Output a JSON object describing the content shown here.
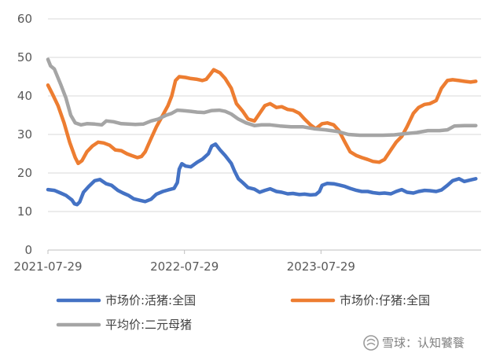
{
  "chart_data": {
    "type": "line",
    "title": "",
    "xlabel": "",
    "ylabel": "",
    "ylim": [
      0,
      60
    ],
    "yticks": [
      0,
      10,
      20,
      30,
      40,
      50,
      60
    ],
    "xlim": [
      "2021-07-29",
      "2024-09-29"
    ],
    "xtick_labels": [
      "2021-07-29",
      "2022-07-29",
      "2023-07-29"
    ],
    "grid": "horizontal",
    "legend_position": "bottom",
    "series": [
      {
        "name": "市场价:活猪:全国",
        "color": "#4472C4",
        "points": [
          [
            "2021-07-29",
            15.7
          ],
          [
            "2021-08-15",
            15.5
          ],
          [
            "2021-09-01",
            14.8
          ],
          [
            "2021-09-15",
            14.2
          ],
          [
            "2021-10-01",
            13.0
          ],
          [
            "2021-10-08",
            12.0
          ],
          [
            "2021-10-15",
            11.8
          ],
          [
            "2021-10-22",
            12.5
          ],
          [
            "2021-11-01",
            15.0
          ],
          [
            "2021-11-15",
            16.5
          ],
          [
            "2021-12-01",
            18.0
          ],
          [
            "2021-12-15",
            18.3
          ],
          [
            "2022-01-01",
            17.2
          ],
          [
            "2022-01-15",
            16.8
          ],
          [
            "2022-02-01",
            15.5
          ],
          [
            "2022-02-15",
            14.8
          ],
          [
            "2022-03-01",
            14.2
          ],
          [
            "2022-03-15",
            13.3
          ],
          [
            "2022-04-01",
            12.9
          ],
          [
            "2022-04-15",
            12.6
          ],
          [
            "2022-05-01",
            13.2
          ],
          [
            "2022-05-15",
            14.5
          ],
          [
            "2022-06-01",
            15.2
          ],
          [
            "2022-06-15",
            15.6
          ],
          [
            "2022-07-01",
            16.0
          ],
          [
            "2022-07-10",
            17.5
          ],
          [
            "2022-07-15",
            21.0
          ],
          [
            "2022-07-22",
            22.4
          ],
          [
            "2022-08-01",
            21.8
          ],
          [
            "2022-08-15",
            21.6
          ],
          [
            "2022-09-01",
            22.8
          ],
          [
            "2022-09-15",
            23.6
          ],
          [
            "2022-10-01",
            25.0
          ],
          [
            "2022-10-10",
            27.0
          ],
          [
            "2022-10-20",
            27.5
          ],
          [
            "2022-11-01",
            26.0
          ],
          [
            "2022-11-15",
            24.5
          ],
          [
            "2022-12-01",
            22.5
          ],
          [
            "2022-12-10",
            20.5
          ],
          [
            "2022-12-20",
            18.5
          ],
          [
            "2023-01-01",
            17.5
          ],
          [
            "2023-01-15",
            16.2
          ],
          [
            "2023-02-01",
            15.8
          ],
          [
            "2023-02-15",
            15.0
          ],
          [
            "2023-03-01",
            15.5
          ],
          [
            "2023-03-15",
            15.9
          ],
          [
            "2023-04-01",
            15.2
          ],
          [
            "2023-04-15",
            15.0
          ],
          [
            "2023-05-01",
            14.6
          ],
          [
            "2023-05-15",
            14.7
          ],
          [
            "2023-06-01",
            14.4
          ],
          [
            "2023-06-15",
            14.5
          ],
          [
            "2023-07-01",
            14.3
          ],
          [
            "2023-07-15",
            14.4
          ],
          [
            "2023-07-25",
            15.2
          ],
          [
            "2023-08-01",
            16.8
          ],
          [
            "2023-08-15",
            17.3
          ],
          [
            "2023-09-01",
            17.2
          ],
          [
            "2023-09-15",
            16.9
          ],
          [
            "2023-10-01",
            16.5
          ],
          [
            "2023-10-15",
            16.0
          ],
          [
            "2023-11-01",
            15.5
          ],
          [
            "2023-11-15",
            15.2
          ],
          [
            "2023-12-01",
            15.2
          ],
          [
            "2023-12-15",
            14.9
          ],
          [
            "2024-01-01",
            14.7
          ],
          [
            "2024-01-15",
            14.8
          ],
          [
            "2024-02-01",
            14.6
          ],
          [
            "2024-02-15",
            15.2
          ],
          [
            "2024-03-01",
            15.7
          ],
          [
            "2024-03-15",
            15.0
          ],
          [
            "2024-04-01",
            14.8
          ],
          [
            "2024-04-15",
            15.2
          ],
          [
            "2024-05-01",
            15.5
          ],
          [
            "2024-05-15",
            15.4
          ],
          [
            "2024-06-01",
            15.2
          ],
          [
            "2024-06-15",
            15.6
          ],
          [
            "2024-07-01",
            16.8
          ],
          [
            "2024-07-15",
            18.0
          ],
          [
            "2024-08-01",
            18.5
          ],
          [
            "2024-08-15",
            17.8
          ],
          [
            "2024-09-01",
            18.2
          ],
          [
            "2024-09-15",
            18.5
          ]
        ]
      },
      {
        "name": "市场价:仔猪:全国",
        "color": "#ED7D31",
        "points": [
          [
            "2021-07-29",
            42.8
          ],
          [
            "2021-08-10",
            40.5
          ],
          [
            "2021-08-25",
            37.5
          ],
          [
            "2021-09-10",
            33.0
          ],
          [
            "2021-09-25",
            28.0
          ],
          [
            "2021-10-10",
            24.0
          ],
          [
            "2021-10-18",
            22.5
          ],
          [
            "2021-10-28",
            23.2
          ],
          [
            "2021-11-10",
            25.5
          ],
          [
            "2021-11-25",
            27.0
          ],
          [
            "2021-12-10",
            28.0
          ],
          [
            "2021-12-25",
            27.8
          ],
          [
            "2022-01-10",
            27.2
          ],
          [
            "2022-01-25",
            26.0
          ],
          [
            "2022-02-10",
            25.8
          ],
          [
            "2022-02-25",
            25.0
          ],
          [
            "2022-03-10",
            24.5
          ],
          [
            "2022-03-25",
            24.0
          ],
          [
            "2022-04-05",
            24.3
          ],
          [
            "2022-04-15",
            25.5
          ],
          [
            "2022-05-01",
            29.0
          ],
          [
            "2022-05-15",
            32.0
          ],
          [
            "2022-06-01",
            35.0
          ],
          [
            "2022-06-15",
            37.5
          ],
          [
            "2022-06-25",
            40.0
          ],
          [
            "2022-07-05",
            44.0
          ],
          [
            "2022-07-15",
            45.0
          ],
          [
            "2022-08-01",
            44.8
          ],
          [
            "2022-08-15",
            44.5
          ],
          [
            "2022-09-01",
            44.3
          ],
          [
            "2022-09-15",
            44.0
          ],
          [
            "2022-09-25",
            44.3
          ],
          [
            "2022-10-05",
            45.5
          ],
          [
            "2022-10-15",
            46.8
          ],
          [
            "2022-11-01",
            46.0
          ],
          [
            "2022-11-15",
            44.5
          ],
          [
            "2022-12-01",
            42.0
          ],
          [
            "2022-12-15",
            38.0
          ],
          [
            "2023-01-01",
            36.0
          ],
          [
            "2023-01-15",
            34.0
          ],
          [
            "2023-02-01",
            33.5
          ],
          [
            "2023-02-15",
            35.5
          ],
          [
            "2023-03-01",
            37.5
          ],
          [
            "2023-03-15",
            38.0
          ],
          [
            "2023-04-01",
            37.0
          ],
          [
            "2023-04-15",
            37.2
          ],
          [
            "2023-05-01",
            36.5
          ],
          [
            "2023-05-15",
            36.3
          ],
          [
            "2023-06-01",
            35.5
          ],
          [
            "2023-06-15",
            34.0
          ],
          [
            "2023-07-01",
            32.5
          ],
          [
            "2023-07-15",
            31.5
          ],
          [
            "2023-08-01",
            32.8
          ],
          [
            "2023-08-15",
            33.0
          ],
          [
            "2023-09-01",
            32.5
          ],
          [
            "2023-09-15",
            31.0
          ],
          [
            "2023-10-01",
            28.0
          ],
          [
            "2023-10-15",
            25.5
          ],
          [
            "2023-11-01",
            24.5
          ],
          [
            "2023-11-15",
            24.0
          ],
          [
            "2023-12-01",
            23.5
          ],
          [
            "2023-12-15",
            23.0
          ],
          [
            "2024-01-01",
            22.8
          ],
          [
            "2024-01-15",
            23.5
          ],
          [
            "2024-02-01",
            26.0
          ],
          [
            "2024-02-15",
            28.0
          ],
          [
            "2024-03-01",
            29.5
          ],
          [
            "2024-03-15",
            32.0
          ],
          [
            "2024-04-01",
            35.5
          ],
          [
            "2024-04-15",
            37.0
          ],
          [
            "2024-05-01",
            37.8
          ],
          [
            "2024-05-15",
            38.0
          ],
          [
            "2024-06-01",
            38.8
          ],
          [
            "2024-06-15",
            42.0
          ],
          [
            "2024-07-01",
            44.0
          ],
          [
            "2024-07-15",
            44.2
          ],
          [
            "2024-08-01",
            44.0
          ],
          [
            "2024-08-15",
            43.8
          ],
          [
            "2024-09-01",
            43.6
          ],
          [
            "2024-09-15",
            43.8
          ]
        ]
      },
      {
        "name": "平均价:二元母猪",
        "color": "#A5A5A5",
        "points": [
          [
            "2021-07-29",
            49.5
          ],
          [
            "2021-08-05",
            47.8
          ],
          [
            "2021-08-15",
            47.0
          ],
          [
            "2021-09-01",
            43.0
          ],
          [
            "2021-09-15",
            39.5
          ],
          [
            "2021-09-28",
            35.0
          ],
          [
            "2021-10-10",
            33.0
          ],
          [
            "2021-10-25",
            32.5
          ],
          [
            "2021-11-10",
            32.8
          ],
          [
            "2021-12-01",
            32.7
          ],
          [
            "2021-12-20",
            32.5
          ],
          [
            "2022-01-01",
            33.5
          ],
          [
            "2022-01-20",
            33.3
          ],
          [
            "2022-02-10",
            32.8
          ],
          [
            "2022-03-01",
            32.7
          ],
          [
            "2022-03-20",
            32.6
          ],
          [
            "2022-04-10",
            32.7
          ],
          [
            "2022-05-01",
            33.5
          ],
          [
            "2022-05-20",
            34.0
          ],
          [
            "2022-06-10",
            35.0
          ],
          [
            "2022-06-25",
            35.5
          ],
          [
            "2022-07-10",
            36.3
          ],
          [
            "2022-07-25",
            36.2
          ],
          [
            "2022-08-15",
            36.0
          ],
          [
            "2022-09-01",
            35.8
          ],
          [
            "2022-09-20",
            35.7
          ],
          [
            "2022-10-10",
            36.2
          ],
          [
            "2022-10-30",
            36.3
          ],
          [
            "2022-11-15",
            36.0
          ],
          [
            "2022-12-01",
            35.3
          ],
          [
            "2022-12-20",
            34.0
          ],
          [
            "2023-01-10",
            33.0
          ],
          [
            "2023-02-01",
            32.3
          ],
          [
            "2023-02-20",
            32.5
          ],
          [
            "2023-03-15",
            32.5
          ],
          [
            "2023-04-10",
            32.2
          ],
          [
            "2023-05-10",
            32.0
          ],
          [
            "2023-06-10",
            32.0
          ],
          [
            "2023-07-10",
            31.5
          ],
          [
            "2023-08-10",
            31.2
          ],
          [
            "2023-09-10",
            30.8
          ],
          [
            "2023-10-10",
            30.0
          ],
          [
            "2023-11-10",
            29.8
          ],
          [
            "2023-12-10",
            29.8
          ],
          [
            "2024-01-10",
            29.8
          ],
          [
            "2024-02-10",
            29.9
          ],
          [
            "2024-03-10",
            30.2
          ],
          [
            "2024-04-10",
            30.5
          ],
          [
            "2024-05-10",
            31.0
          ],
          [
            "2024-06-10",
            31.0
          ],
          [
            "2024-07-01",
            31.2
          ],
          [
            "2024-07-20",
            32.2
          ],
          [
            "2024-08-15",
            32.3
          ],
          [
            "2024-09-15",
            32.3
          ]
        ]
      }
    ]
  },
  "watermark": {
    "icon": "snowball-icon",
    "text": "雪球：认知饕餮"
  }
}
